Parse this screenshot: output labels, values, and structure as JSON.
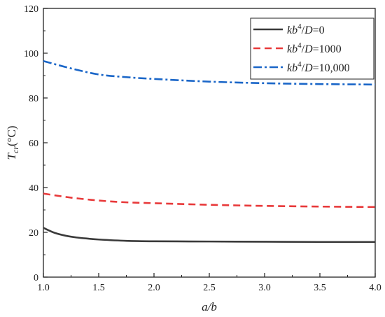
{
  "chart_data": {
    "type": "line",
    "title": "",
    "xlabel": "a/b",
    "ylabel": "T_cr (°C)",
    "ylabel_parts": {
      "main": "T",
      "sub": "cr",
      "unit": "(°C)"
    },
    "xlim": [
      1.0,
      4.0
    ],
    "ylim": [
      0,
      120
    ],
    "xticks": [
      1.0,
      1.5,
      2.0,
      2.5,
      3.0,
      3.5,
      4.0
    ],
    "xtick_labels": [
      "1.0",
      "1.5",
      "2.0",
      "2.5",
      "3.0",
      "3.5",
      "4.0"
    ],
    "yticks": [
      0,
      20,
      40,
      60,
      80,
      100,
      120
    ],
    "ytick_labels": [
      "0",
      "20",
      "40",
      "60",
      "80",
      "100",
      "120"
    ],
    "grid": false,
    "legend_position": "top-right",
    "series": [
      {
        "name": "kb4/D=0",
        "label_parts": {
          "k": "k",
          "b": "b",
          "exp": "4",
          "slash": "/",
          "D": "D",
          "eq": "=0"
        },
        "color": "#3a3a3a",
        "dash": "solid",
        "x": [
          1.0,
          1.1,
          1.2,
          1.3,
          1.4,
          1.5,
          1.75,
          2.0,
          2.5,
          3.0,
          3.5,
          4.0
        ],
        "y": [
          22.0,
          19.8,
          18.5,
          17.7,
          17.2,
          16.8,
          16.2,
          16.0,
          15.9,
          15.8,
          15.7,
          15.7
        ]
      },
      {
        "name": "kb4/D=1000",
        "label_parts": {
          "k": "k",
          "b": "b",
          "exp": "4",
          "slash": "/",
          "D": "D",
          "eq": "=1000"
        },
        "color": "#e8393a",
        "dash": "dashed",
        "x": [
          1.0,
          1.25,
          1.5,
          1.75,
          2.0,
          2.5,
          3.0,
          3.5,
          4.0
        ],
        "y": [
          37.3,
          35.5,
          34.2,
          33.4,
          33.0,
          32.3,
          31.8,
          31.5,
          31.3
        ]
      },
      {
        "name": "kb4/D=10,000",
        "label_parts": {
          "k": "k",
          "b": "b",
          "exp": "4",
          "slash": "/",
          "D": "D",
          "eq": "=10,000"
        },
        "color": "#1a66c8",
        "dash": "dashdot",
        "x": [
          1.0,
          1.25,
          1.5,
          1.75,
          2.0,
          2.5,
          3.0,
          3.5,
          4.0
        ],
        "y": [
          96.5,
          93.2,
          90.5,
          89.3,
          88.5,
          87.3,
          86.6,
          86.2,
          86.0
        ]
      }
    ]
  }
}
